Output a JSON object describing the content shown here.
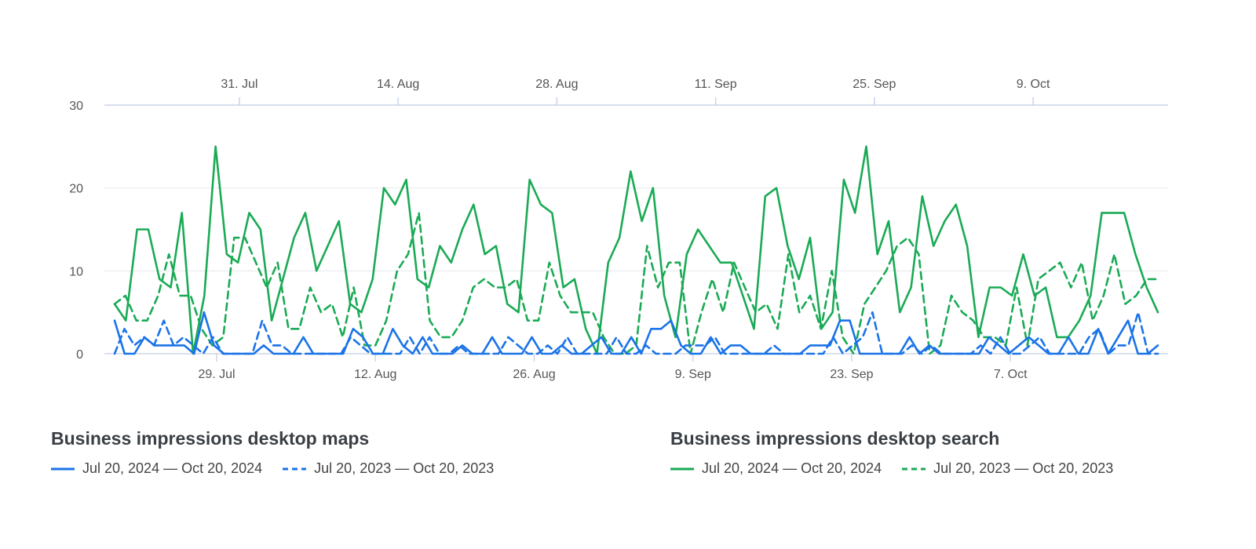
{
  "chart_data": {
    "type": "line",
    "x_start_date": "2024-07-20",
    "x_end_date": "2024-10-20",
    "ylim": [
      0,
      30
    ],
    "y_ticks": [
      "0",
      "10",
      "20",
      "30"
    ],
    "grid": true,
    "legend_position": "bottom",
    "bottom_axis_ticks": [
      {
        "label": "29. Jul",
        "date": "2024-07-29"
      },
      {
        "label": "12. Aug",
        "date": "2024-08-12"
      },
      {
        "label": "26. Aug",
        "date": "2024-08-26"
      },
      {
        "label": "9. Sep",
        "date": "2024-09-09"
      },
      {
        "label": "23. Sep",
        "date": "2024-09-23"
      },
      {
        "label": "7. Oct",
        "date": "2024-10-07"
      }
    ],
    "top_axis_ticks": [
      {
        "label": "31. Jul",
        "date": "2023-07-31"
      },
      {
        "label": "14. Aug",
        "date": "2023-08-14"
      },
      {
        "label": "28. Aug",
        "date": "2023-08-28"
      },
      {
        "label": "11. Sep",
        "date": "2023-09-11"
      },
      {
        "label": "25. Sep",
        "date": "2023-09-25"
      },
      {
        "label": "9. Oct",
        "date": "2023-10-09"
      }
    ],
    "groups": [
      {
        "title": "Business impressions desktop maps",
        "color": "#1a73e8",
        "series": [
          {
            "name": "Jul 20, 2024 — Oct 20, 2024",
            "style": "solid",
            "values": [
              4,
              0,
              0,
              2,
              1,
              1,
              1,
              1,
              0,
              5,
              1,
              0,
              0,
              0,
              0,
              1,
              0,
              0,
              0,
              2,
              0,
              0,
              0,
              0,
              3,
              2,
              0,
              0,
              3,
              1,
              0,
              2,
              0,
              0,
              0,
              1,
              0,
              0,
              2,
              0,
              0,
              0,
              2,
              0,
              0,
              1,
              0,
              0,
              1,
              2,
              0,
              0,
              2,
              0,
              3,
              3,
              4,
              1,
              0,
              0,
              2,
              0,
              1,
              1,
              0,
              0,
              0,
              0,
              0,
              0,
              1,
              1,
              1,
              4,
              4,
              0,
              0,
              0,
              0,
              0,
              2,
              0,
              1,
              0,
              0,
              0,
              0,
              0,
              2,
              1,
              0,
              1,
              2,
              1,
              0,
              0,
              2,
              0,
              0,
              3,
              0,
              2,
              4,
              0,
              0,
              1
            ]
          },
          {
            "name": "Jul 20, 2023 — Oct 20, 2023",
            "style": "dashed",
            "values": [
              0,
              3,
              1,
              2,
              1,
              4,
              1,
              2,
              1,
              0,
              2,
              0,
              0,
              0,
              0,
              4,
              1,
              1,
              0,
              0,
              0,
              0,
              0,
              0,
              2,
              1,
              0,
              0,
              0,
              0,
              2,
              0,
              2,
              0,
              0,
              1,
              0,
              0,
              0,
              0,
              2,
              1,
              0,
              0,
              1,
              0,
              2,
              0,
              0,
              0,
              0,
              2,
              0,
              0,
              1,
              0,
              0,
              0,
              1,
              1,
              1,
              2,
              0,
              0,
              0,
              0,
              0,
              1,
              0,
              0,
              0,
              0,
              0,
              2,
              0,
              1,
              2,
              5,
              0,
              0,
              0,
              1,
              0,
              1,
              0,
              0,
              0,
              0,
              1,
              0,
              2,
              0,
              0,
              1,
              2,
              0,
              0,
              0,
              0,
              2,
              3,
              0,
              1,
              1,
              5,
              0,
              0
            ]
          }
        ]
      },
      {
        "title": "Business impressions desktop search",
        "color": "#1aaa55",
        "series": [
          {
            "name": "Jul 20, 2024 — Oct 20, 2024",
            "style": "solid",
            "values": [
              6,
              4,
              15,
              15,
              9,
              8,
              17,
              0,
              7,
              25,
              12,
              11,
              17,
              15,
              4,
              9,
              14,
              17,
              10,
              13,
              16,
              6,
              5,
              9,
              20,
              18,
              21,
              9,
              8,
              13,
              11,
              15,
              18,
              12,
              13,
              6,
              5,
              21,
              18,
              17,
              8,
              9,
              3,
              0,
              11,
              14,
              22,
              16,
              20,
              7,
              2,
              12,
              15,
              13,
              11,
              11,
              7,
              3,
              19,
              20,
              13,
              9,
              14,
              3,
              5,
              21,
              17,
              25,
              12,
              16,
              5,
              8,
              19,
              13,
              16,
              18,
              13,
              2,
              8,
              8,
              7,
              12,
              7,
              8,
              2,
              2,
              4,
              7,
              17,
              17,
              17,
              12,
              8,
              5
            ]
          },
          {
            "name": "Jul 20, 2023 — Oct 20, 2023",
            "style": "dashed",
            "values": [
              6,
              7,
              4,
              4,
              7,
              12,
              7,
              7,
              3,
              1,
              2,
              14,
              14,
              11,
              8,
              11,
              3,
              3,
              8,
              5,
              6,
              2,
              8,
              1,
              1,
              4,
              10,
              12,
              17,
              4,
              2,
              2,
              4,
              8,
              9,
              8,
              8,
              9,
              4,
              4,
              11,
              7,
              5,
              5,
              5,
              2,
              0,
              0,
              1,
              13,
              8,
              11,
              11,
              0,
              5,
              9,
              5,
              11,
              8,
              5,
              6,
              3,
              12,
              5,
              7,
              3,
              10,
              2,
              0,
              6,
              8,
              10,
              13,
              14,
              12,
              0,
              1,
              7,
              5,
              4,
              2,
              2,
              1,
              8,
              1,
              9,
              10,
              11,
              8,
              11,
              4,
              7,
              12,
              6,
              7,
              9,
              9
            ]
          }
        ]
      }
    ]
  }
}
